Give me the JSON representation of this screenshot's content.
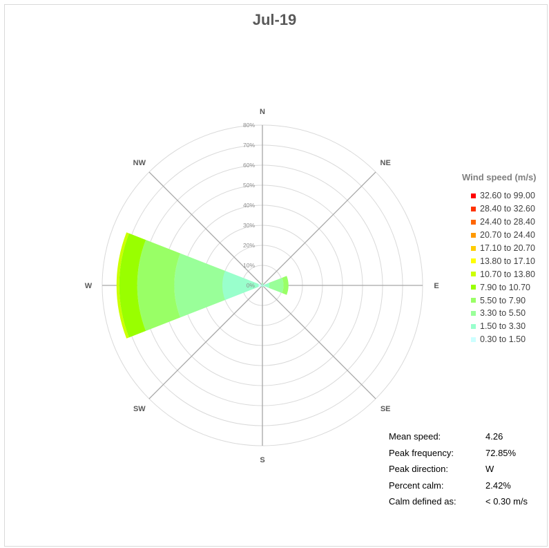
{
  "chart_data": {
    "type": "polar-bar",
    "title": "Jul-19",
    "directions": [
      "N",
      "NE",
      "E",
      "SE",
      "S",
      "SW",
      "W",
      "NW"
    ],
    "radial_ticks": [
      "0%",
      "10%",
      "20%",
      "30%",
      "40%",
      "50%",
      "60%",
      "70%",
      "80%"
    ],
    "rlim": [
      0,
      80
    ],
    "grid": true,
    "legend": {
      "title": "Wind speed (m/s)",
      "placement": "right",
      "bins": [
        {
          "label": "32.60 to 99.00",
          "color": "#ff0000"
        },
        {
          "label": "28.40 to 32.60",
          "color": "#ff3300"
        },
        {
          "label": "24.40 to 28.40",
          "color": "#ff6600"
        },
        {
          "label": "20.70 to 24.40",
          "color": "#ff9900"
        },
        {
          "label": "17.10 to 20.70",
          "color": "#ffcc00"
        },
        {
          "label": "13.80 to 17.10",
          "color": "#ffff00"
        },
        {
          "label": "10.70 to 13.80",
          "color": "#ccff00"
        },
        {
          "label": "7.90 to 10.70",
          "color": "#99ff00"
        },
        {
          "label": "5.50 to 7.90",
          "color": "#99ff66"
        },
        {
          "label": "3.30 to 5.50",
          "color": "#99ff99"
        },
        {
          "label": "1.50 to 3.30",
          "color": "#99ffcc"
        },
        {
          "label": "0.30 to 1.50",
          "color": "#ccffff"
        }
      ]
    },
    "series": [
      {
        "direction": "N",
        "values": [
          0.4,
          0.5,
          0.3,
          0,
          0,
          0,
          0,
          0,
          0,
          0,
          0,
          0
        ]
      },
      {
        "direction": "NE",
        "values": [
          0.3,
          0.3,
          0,
          0,
          0,
          0,
          0,
          0,
          0,
          0,
          0,
          0
        ]
      },
      {
        "direction": "E",
        "values": [
          1.0,
          2.5,
          7.0,
          2.5,
          0,
          0,
          0,
          0,
          0,
          0,
          0,
          0
        ]
      },
      {
        "direction": "SE",
        "values": [
          0.3,
          0.5,
          0,
          0,
          0,
          0,
          0,
          0,
          0,
          0,
          0,
          0
        ]
      },
      {
        "direction": "S",
        "values": [
          0.3,
          0.4,
          0,
          0,
          0,
          0,
          0,
          0,
          0,
          0,
          0,
          0
        ]
      },
      {
        "direction": "SW",
        "values": [
          0.3,
          0.5,
          0,
          0,
          0,
          0,
          0,
          0,
          0,
          0,
          0,
          0
        ]
      },
      {
        "direction": "W",
        "values": [
          2.0,
          18.0,
          24.0,
          18.5,
          9.0,
          1.35,
          0,
          0,
          0,
          0,
          0,
          0
        ]
      },
      {
        "direction": "NW",
        "values": [
          0.3,
          0.4,
          0,
          0,
          0,
          0,
          0,
          0,
          0,
          0,
          0,
          0
        ]
      }
    ]
  },
  "stats": [
    {
      "label": "Mean speed:",
      "value": "4.26"
    },
    {
      "label": "Peak frequency:",
      "value": "72.85%"
    },
    {
      "label": "Peak direction:",
      "value": "W"
    },
    {
      "label": "Percent calm:",
      "value": "2.42%"
    },
    {
      "label": "Calm defined as:",
      "value": "< 0.30 m/s"
    }
  ]
}
